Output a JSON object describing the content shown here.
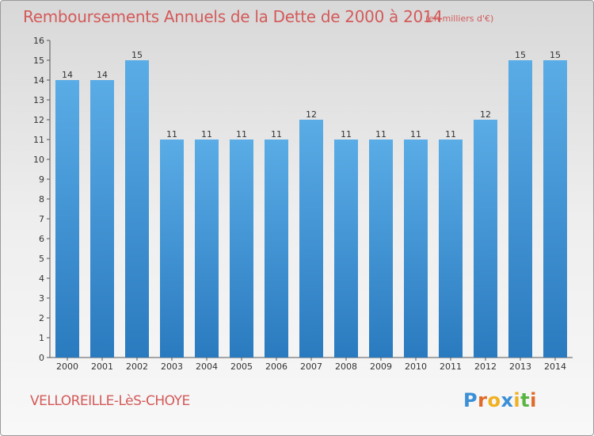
{
  "header": {
    "title": "Remboursements Annuels de la Dette de 2000 à 2014",
    "subtitle": "(en milliers d'€)"
  },
  "footer": {
    "town": "VELLOREILLE-LèS-CHOYE",
    "logo_letters": [
      "P",
      "r",
      "o",
      "x",
      "i",
      "t",
      "i"
    ]
  },
  "colors": {
    "title": "#d45a5a",
    "bar_light": "#5aace6",
    "bar_dark": "#2a7abf",
    "logo": [
      "#3a8fd6",
      "#e06a2a",
      "#f0b020",
      "#3a8fd6",
      "#f0b020",
      "#59b540",
      "#e06a2a"
    ]
  },
  "chart_data": {
    "type": "bar",
    "categories": [
      "2000",
      "2001",
      "2002",
      "2003",
      "2004",
      "2005",
      "2006",
      "2007",
      "2008",
      "2009",
      "2010",
      "2011",
      "2012",
      "2013",
      "2014"
    ],
    "values": [
      14,
      14,
      15,
      11,
      11,
      11,
      11,
      12,
      11,
      11,
      11,
      11,
      12,
      15,
      15
    ],
    "ylim": [
      0,
      16
    ],
    "yticks": [
      0,
      1,
      2,
      3,
      4,
      5,
      6,
      7,
      8,
      9,
      10,
      11,
      12,
      13,
      14,
      15,
      16
    ],
    "grid": false
  }
}
